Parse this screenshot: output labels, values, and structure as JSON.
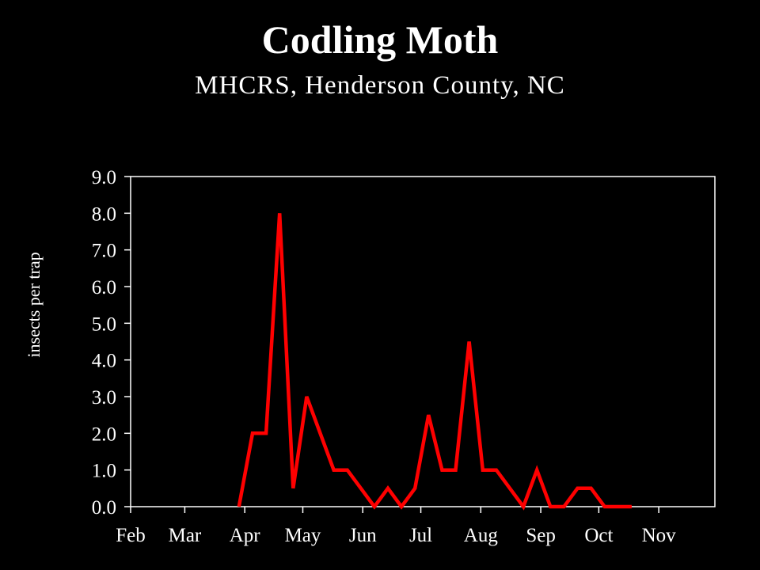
{
  "chart_data": {
    "type": "line",
    "title": "Codling Moth",
    "subtitle": "MHCRS, Henderson County, NC",
    "xlabel": "",
    "ylabel": "insects per trap",
    "ylim": [
      0,
      9
    ],
    "y_ticks": [
      "0.0",
      "1.0",
      "2.0",
      "3.0",
      "4.0",
      "5.0",
      "6.0",
      "7.0",
      "8.0",
      "9.0"
    ],
    "x_ticks": [
      "Feb",
      "Mar",
      "Apr",
      "May",
      "Jun",
      "Jul",
      "Aug",
      "Sep",
      "Oct",
      "Nov"
    ],
    "grid": false,
    "line_color": "#ff0000",
    "series": [
      {
        "x": [
          "Mar 29",
          "Apr 5",
          "Apr 12",
          "Apr 19",
          "Apr 26",
          "May 3",
          "May 10",
          "May 17",
          "May 24",
          "May 31",
          "Jun 7",
          "Jun 14",
          "Jun 21",
          "Jun 28",
          "Jul 5",
          "Jul 12",
          "Jul 19",
          "Jul 26",
          "Aug 2",
          "Aug 9",
          "Aug 16",
          "Aug 23",
          "Aug 30",
          "Sep 6",
          "Sep 13",
          "Sep 20",
          "Sep 27",
          "Oct 4",
          "Oct 11",
          "Oct 18"
        ],
        "values": [
          0,
          2,
          2,
          8,
          0.5,
          3,
          2,
          1,
          1,
          0.5,
          0,
          0.5,
          0,
          0.5,
          2.5,
          1,
          1,
          4.5,
          1,
          1,
          0.5,
          0,
          1,
          0,
          0,
          0.5,
          0.5,
          0,
          0,
          0
        ]
      }
    ]
  }
}
